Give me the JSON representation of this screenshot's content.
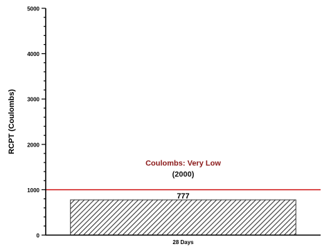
{
  "chart_data": {
    "type": "bar",
    "title": "",
    "xlabel": "",
    "ylabel": "RCPT (Coulombs)",
    "categories": [
      "28 Days"
    ],
    "values": [
      777
    ],
    "data_labels": [
      "777"
    ],
    "ylim": [
      0,
      5000
    ],
    "yticks": [
      0,
      1000,
      2000,
      3000,
      4000,
      5000
    ],
    "y_minor_step": 200,
    "grid": false,
    "legend": "none",
    "bar_fill": "diagonal-hatch",
    "bar_color": "#333333",
    "reference_line": {
      "value": 1000,
      "color": "#cc0000",
      "label_line1": "Coulombs: Very Low",
      "label_line2": "(2000)",
      "label_color": "#8b1a1a"
    }
  }
}
